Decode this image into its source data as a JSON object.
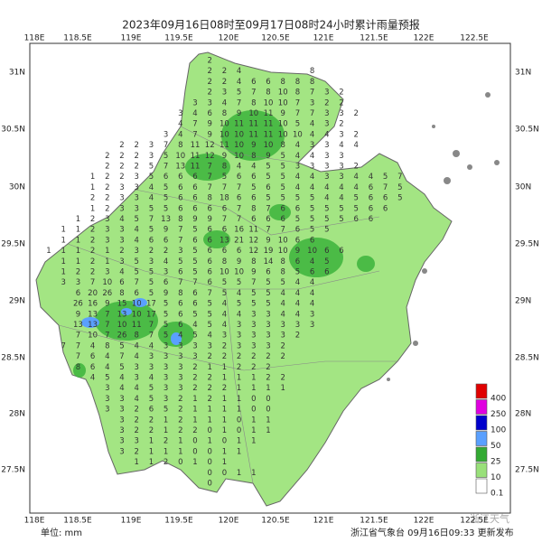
{
  "title": "2023年09月16日08时至09月17日08时24小时累计雨量预报",
  "lon_labels": [
    "118E",
    "118.5E",
    "119E",
    "119.5E",
    "120E",
    "120.5E",
    "121E",
    "121.5E",
    "122E",
    "122.5E"
  ],
  "lat_labels": [
    "31N",
    "30.5N",
    "30N",
    "29.5N",
    "29N",
    "28.5N",
    "28N",
    "27.5N"
  ],
  "legend": {
    "colors": [
      "#e00000",
      "#e000e0",
      "#0000cc",
      "#5aa0ff",
      "#33aa33",
      "#99e07a",
      "#ffffff"
    ],
    "labels": [
      400,
      250,
      100,
      50,
      25,
      10,
      0.1
    ]
  },
  "unit_label": "单位: mm",
  "issuer": "浙江省气象台  09月16日09:33 更新发布",
  "watermark": "浙江天气",
  "rainfall_grid": [
    [
      null,
      null,
      null,
      null,
      null,
      null,
      null,
      null,
      null,
      null,
      null,
      2
    ],
    [
      null,
      null,
      null,
      null,
      null,
      null,
      null,
      null,
      null,
      null,
      null,
      2,
      2,
      4,
      null,
      null,
      null,
      null,
      8
    ],
    [
      null,
      null,
      null,
      null,
      null,
      null,
      null,
      null,
      null,
      null,
      null,
      2,
      2,
      4,
      6,
      6,
      8,
      8,
      8
    ],
    [
      null,
      null,
      null,
      null,
      null,
      null,
      null,
      null,
      null,
      null,
      null,
      2,
      3,
      5,
      7,
      8,
      10,
      8,
      7,
      3,
      2
    ],
    [
      null,
      null,
      null,
      null,
      null,
      null,
      null,
      null,
      null,
      null,
      3,
      3,
      4,
      7,
      8,
      10,
      10,
      7,
      3,
      2,
      2
    ],
    [
      null,
      null,
      null,
      null,
      null,
      null,
      null,
      null,
      null,
      3,
      4,
      6,
      8,
      9,
      10,
      11,
      9,
      7,
      7,
      3,
      3,
      2
    ],
    [
      null,
      null,
      null,
      null,
      null,
      null,
      null,
      null,
      null,
      4,
      7,
      9,
      10,
      11,
      11,
      11,
      10,
      5,
      4,
      3,
      2
    ],
    [
      null,
      null,
      null,
      null,
      null,
      null,
      null,
      null,
      3,
      4,
      7,
      9,
      10,
      10,
      11,
      11,
      10,
      10,
      4,
      4,
      3,
      2
    ],
    [
      null,
      null,
      null,
      null,
      null,
      2,
      2,
      3,
      7,
      8,
      11,
      12,
      11,
      10,
      9,
      10,
      8,
      4,
      3,
      3,
      4,
      4
    ],
    [
      null,
      null,
      null,
      null,
      2,
      2,
      2,
      3,
      5,
      10,
      11,
      12,
      9,
      10,
      8,
      9,
      5,
      4,
      4,
      3,
      3
    ],
    [
      null,
      null,
      null,
      null,
      2,
      2,
      2,
      5,
      7,
      13,
      11,
      7,
      8,
      4,
      4,
      5,
      5,
      3,
      3,
      3,
      3,
      2
    ],
    [
      null,
      null,
      null,
      1,
      2,
      2,
      3,
      5,
      6,
      6,
      6,
      7,
      5,
      6,
      6,
      5,
      5,
      4,
      4,
      3,
      3,
      4,
      4,
      5,
      7
    ],
    [
      null,
      null,
      null,
      1,
      2,
      3,
      3,
      4,
      5,
      6,
      6,
      7,
      7,
      7,
      5,
      6,
      5,
      4,
      4,
      4,
      4,
      4,
      6,
      7,
      5
    ],
    [
      null,
      null,
      null,
      2,
      2,
      3,
      3,
      4,
      5,
      6,
      6,
      8,
      18,
      6,
      6,
      5,
      5,
      5,
      5,
      4,
      4,
      5,
      6,
      6,
      5
    ],
    [
      null,
      null,
      null,
      1,
      2,
      3,
      3,
      5,
      5,
      6,
      6,
      6,
      6,
      7,
      8,
      7,
      6,
      6,
      5,
      5,
      5,
      5,
      6,
      6
    ],
    [
      null,
      null,
      1,
      2,
      3,
      4,
      5,
      7,
      13,
      8,
      9,
      9,
      7,
      7,
      6,
      6,
      6,
      5,
      5,
      5,
      5,
      6,
      6
    ],
    [
      null,
      1,
      1,
      2,
      3,
      3,
      4,
      5,
      9,
      7,
      5,
      6,
      6,
      16,
      11,
      7,
      7,
      6,
      5,
      5
    ],
    [
      null,
      1,
      1,
      2,
      3,
      3,
      4,
      6,
      6,
      7,
      6,
      6,
      13,
      21,
      12,
      9,
      10,
      6,
      6
    ],
    [
      1,
      1,
      1,
      2,
      1,
      2,
      3,
      2,
      2,
      3,
      5,
      6,
      6,
      6,
      12,
      19,
      10,
      9,
      10,
      6,
      6
    ],
    [
      null,
      1,
      1,
      2,
      1,
      3,
      5,
      3,
      4,
      5,
      5,
      6,
      8,
      9,
      8,
      14,
      8,
      6,
      4,
      5
    ],
    [
      null,
      1,
      2,
      2,
      3,
      4,
      5,
      5,
      3,
      6,
      5,
      6,
      10,
      10,
      9,
      6,
      8,
      5,
      6,
      6
    ],
    [
      null,
      3,
      3,
      7,
      10,
      6,
      7,
      5,
      6,
      7,
      7,
      6,
      5,
      5,
      7,
      5,
      5,
      4,
      4
    ],
    [
      null,
      null,
      6,
      20,
      26,
      8,
      6,
      5,
      9,
      8,
      6,
      7,
      5,
      4,
      5,
      5,
      4,
      4,
      4
    ],
    [
      null,
      null,
      26,
      16,
      9,
      15,
      10,
      17,
      5,
      6,
      6,
      5,
      4,
      5,
      5,
      5,
      4,
      4,
      4
    ],
    [
      null,
      null,
      9,
      13,
      7,
      13,
      10,
      17,
      5,
      6,
      5,
      5,
      4,
      4,
      3,
      3,
      4,
      4,
      3
    ],
    [
      null,
      null,
      13,
      13,
      7,
      10,
      11,
      7,
      5,
      6,
      4,
      5,
      4,
      3,
      3,
      3,
      3,
      3,
      3
    ],
    [
      null,
      null,
      7,
      10,
      7,
      26,
      8,
      7,
      5,
      4,
      5,
      4,
      3,
      3,
      3,
      3,
      3,
      2
    ],
    [
      null,
      7,
      7,
      4,
      8,
      5,
      4,
      4,
      3,
      3,
      3,
      3,
      2,
      3,
      3,
      3,
      2
    ],
    [
      null,
      null,
      7,
      6,
      4,
      7,
      4,
      3,
      3,
      3,
      3,
      2,
      2,
      2,
      2,
      2,
      2
    ],
    [
      null,
      null,
      8,
      6,
      4,
      5,
      3,
      3,
      3,
      3,
      2,
      1,
      1,
      2,
      2,
      2
    ],
    [
      null,
      null,
      null,
      4,
      5,
      4,
      3,
      4,
      3,
      3,
      2,
      2,
      1,
      1,
      1,
      2,
      2
    ],
    [
      null,
      null,
      null,
      null,
      3,
      4,
      4,
      5,
      3,
      3,
      2,
      2,
      2,
      1,
      1,
      1,
      1
    ],
    [
      null,
      null,
      null,
      null,
      3,
      3,
      4,
      5,
      3,
      2,
      1,
      2,
      1,
      1,
      0,
      0
    ],
    [
      null,
      null,
      null,
      null,
      3,
      3,
      2,
      6,
      5,
      2,
      1,
      1,
      1,
      1,
      0,
      0
    ],
    [
      null,
      null,
      null,
      null,
      null,
      3,
      2,
      2,
      1,
      2,
      1,
      1,
      1,
      0,
      1,
      1
    ],
    [
      null,
      null,
      null,
      null,
      null,
      3,
      2,
      2,
      1,
      2,
      2,
      0,
      1,
      0,
      1,
      1
    ],
    [
      null,
      null,
      null,
      null,
      null,
      3,
      3,
      1,
      2,
      1,
      0,
      1,
      0,
      1,
      1
    ],
    [
      null,
      null,
      null,
      null,
      null,
      3,
      2,
      1,
      1,
      1,
      0,
      0,
      1,
      1
    ],
    [
      null,
      null,
      null,
      null,
      null,
      null,
      1,
      1,
      2,
      0,
      1,
      0,
      1
    ],
    [
      null,
      null,
      null,
      null,
      null,
      null,
      null,
      null,
      null,
      null,
      null,
      0,
      0,
      1,
      1
    ],
    [
      null,
      null,
      null,
      null,
      null,
      null,
      null,
      null,
      null,
      null,
      null,
      0
    ]
  ]
}
